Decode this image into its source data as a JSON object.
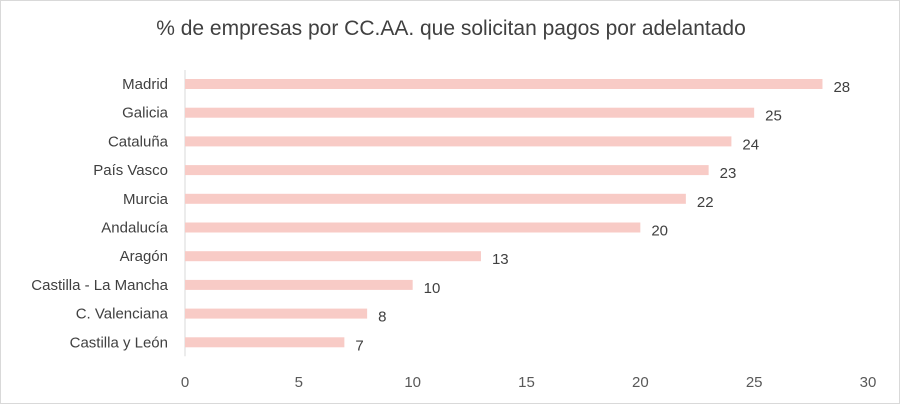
{
  "chart_data": {
    "type": "bar",
    "orientation": "horizontal",
    "title": "% de empresas por CC.AA. que solicitan pagos por adelantado",
    "xlabel": "",
    "ylabel": "",
    "categories": [
      "Madrid",
      "Galicia",
      "Cataluña",
      "País Vasco",
      "Murcia",
      "Andalucía",
      "Aragón",
      "Castilla - La Mancha",
      "C. Valenciana",
      "Castilla y León"
    ],
    "values": [
      28,
      25,
      24,
      23,
      22,
      20,
      13,
      10,
      8,
      7
    ],
    "xlim": [
      0,
      30
    ],
    "xticks": [
      0,
      5,
      10,
      15,
      20,
      25,
      30
    ],
    "grid": false,
    "legend": "none",
    "bar_color": "#f8cbc6"
  }
}
